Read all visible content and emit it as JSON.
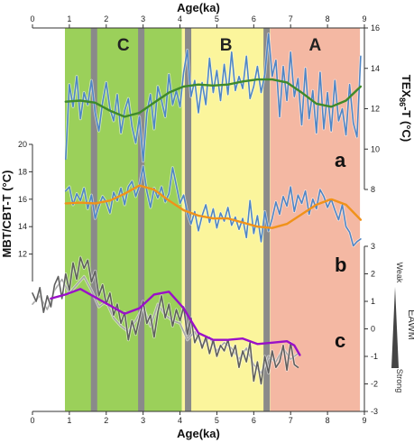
{
  "title": "",
  "axes": {
    "x_top_title": "Age(ka)",
    "x_bottom_title": "Age(ka)",
    "x_range": [
      0,
      9
    ],
    "x_ticks": [
      "0",
      "1",
      "2",
      "3",
      "4",
      "5",
      "6",
      "7",
      "8",
      "9"
    ],
    "y_left_title": "MBT/CBT-T (°C)",
    "y_left_ticks": [
      "12",
      "14",
      "16",
      "18",
      "20"
    ],
    "y_right_top_title_main": "TEX",
    "y_right_top_title_sub": "86",
    "y_right_top_title_tail": "-T (°C)",
    "y_right_top_ticks": [
      "8",
      "10",
      "12",
      "14",
      "16"
    ],
    "y_right_bottom_ticks": [
      "-3",
      "-2",
      "-1",
      "0",
      "1",
      "2",
      "3"
    ]
  },
  "zones": [
    {
      "label": "C",
      "from": 0.88,
      "to": 4.05,
      "color": "#9bd05a"
    },
    {
      "label": "B",
      "from": 4.05,
      "to": 6.45,
      "color": "#fbf59c"
    },
    {
      "label": "A",
      "from": 6.45,
      "to": 8.88,
      "color": "#f4b8a3"
    }
  ],
  "events": [
    1.67,
    2.95,
    4.22,
    6.35
  ],
  "event_color": "#8a8a8a",
  "curve_labels": [
    "a",
    "b",
    "c"
  ],
  "eawm": {
    "title": "EAWM",
    "weak": "Weak",
    "strong": "Strong"
  },
  "chart_data": {
    "type": "line",
    "x_label": "Age(ka)",
    "xlim": [
      0,
      9
    ],
    "series": [
      {
        "key": "a",
        "axis": "right_top",
        "ylim": [
          8,
          16
        ],
        "color": "#4f86c6",
        "x": [
          0.9,
          1.0,
          1.1,
          1.2,
          1.3,
          1.4,
          1.5,
          1.6,
          1.7,
          1.8,
          1.9,
          2.0,
          2.1,
          2.2,
          2.3,
          2.4,
          2.5,
          2.6,
          2.7,
          2.8,
          2.9,
          3.0,
          3.1,
          3.2,
          3.3,
          3.4,
          3.5,
          3.6,
          3.7,
          3.8,
          3.9,
          4.0,
          4.1,
          4.2,
          4.3,
          4.4,
          4.5,
          4.6,
          4.7,
          4.8,
          4.9,
          5.0,
          5.1,
          5.2,
          5.3,
          5.4,
          5.5,
          5.6,
          5.7,
          5.8,
          5.9,
          6.0,
          6.1,
          6.2,
          6.3,
          6.4,
          6.5,
          6.6,
          6.7,
          6.8,
          6.9,
          7.0,
          7.1,
          7.2,
          7.3,
          7.4,
          7.5,
          7.6,
          7.7,
          7.8,
          7.9,
          8.0,
          8.1,
          8.2,
          8.3,
          8.4,
          8.5,
          8.6,
          8.7,
          8.8,
          8.9
        ],
        "y": [
          9.5,
          13.2,
          12.1,
          13.6,
          11.5,
          12.8,
          12.2,
          13.4,
          11.8,
          10.9,
          12.3,
          13.3,
          12.0,
          11.4,
          12.7,
          10.8,
          11.9,
          12.5,
          11.1,
          10.3,
          11.6,
          9.4,
          11.8,
          12.7,
          11.0,
          13.1,
          12.4,
          11.6,
          13.7,
          12.2,
          12.9,
          12.1,
          13.8,
          14.9,
          12.6,
          13.4,
          11.8,
          13.3,
          12.2,
          14.5,
          12.8,
          13.9,
          12.4,
          14.2,
          12.7,
          14.8,
          12.9,
          13.6,
          13.0,
          14.6,
          12.5,
          13.1,
          14.1,
          12.8,
          13.7,
          15.7,
          13.6,
          14.4,
          11.6,
          14.1,
          12.4,
          14.8,
          12.6,
          13.5,
          11.2,
          14.0,
          11.5,
          12.9,
          10.8,
          13.8,
          11.0,
          12.8,
          10.9,
          13.4,
          11.4,
          12.0,
          10.7,
          13.2,
          11.3,
          10.6,
          14.6
        ]
      },
      {
        "key": "a_smooth",
        "axis": "right_top",
        "ylim": [
          8,
          16
        ],
        "color": "#3e8a2a",
        "x": [
          0.9,
          1.3,
          1.7,
          2.1,
          2.5,
          2.9,
          3.3,
          3.7,
          4.1,
          4.5,
          4.9,
          5.3,
          5.7,
          6.1,
          6.5,
          6.9,
          7.3,
          7.7,
          8.1,
          8.5,
          8.9
        ],
        "y": [
          12.35,
          12.4,
          12.3,
          11.9,
          11.6,
          11.8,
          12.3,
          12.8,
          13.1,
          13.2,
          13.15,
          13.2,
          13.35,
          13.45,
          13.45,
          13.3,
          12.8,
          12.25,
          12.1,
          12.4,
          13.1
        ]
      },
      {
        "key": "b",
        "axis": "left",
        "ylim": [
          10,
          20
        ],
        "color": "#4f86c6",
        "x": [
          0.9,
          1.0,
          1.1,
          1.2,
          1.3,
          1.4,
          1.5,
          1.6,
          1.7,
          1.8,
          1.9,
          2.0,
          2.1,
          2.2,
          2.3,
          2.4,
          2.5,
          2.6,
          2.7,
          2.8,
          2.9,
          3.0,
          3.1,
          3.2,
          3.3,
          3.4,
          3.5,
          3.6,
          3.7,
          3.8,
          3.9,
          4.0,
          4.1,
          4.2,
          4.3,
          4.4,
          4.5,
          4.6,
          4.7,
          4.8,
          4.9,
          5.0,
          5.1,
          5.2,
          5.3,
          5.4,
          5.5,
          5.6,
          5.7,
          5.8,
          5.9,
          6.0,
          6.1,
          6.2,
          6.3,
          6.4,
          6.5,
          6.6,
          6.7,
          6.8,
          6.9,
          7.0,
          7.1,
          7.2,
          7.3,
          7.4,
          7.5,
          7.6,
          7.7,
          7.8,
          7.9,
          8.0,
          8.1,
          8.2,
          8.3,
          8.4,
          8.5,
          8.6,
          8.7,
          8.8,
          8.9
        ],
        "y": [
          16.6,
          16.9,
          15.6,
          16.4,
          15.9,
          16.8,
          15.3,
          16.3,
          14.6,
          15.5,
          16.2,
          15.8,
          15.0,
          16.5,
          15.9,
          16.8,
          15.6,
          16.9,
          17.3,
          16.2,
          17.0,
          18.4,
          16.6,
          15.4,
          16.8,
          16.1,
          16.9,
          15.8,
          16.4,
          18.3,
          17.0,
          15.7,
          16.3,
          15.0,
          14.2,
          15.1,
          13.7,
          14.8,
          15.6,
          14.3,
          15.3,
          13.9,
          15.0,
          14.4,
          15.4,
          14.1,
          14.7,
          13.8,
          14.6,
          13.2,
          15.9,
          13.5,
          14.8,
          12.9,
          15.1,
          13.7,
          14.6,
          15.8,
          14.9,
          16.2,
          15.5,
          16.9,
          15.1,
          16.3,
          15.7,
          16.6,
          14.9,
          16.0,
          15.3,
          16.7,
          16.2,
          15.4,
          16.0,
          15.2,
          14.5,
          15.6,
          14.0,
          13.6,
          12.6,
          12.9,
          13.1
        ]
      },
      {
        "key": "b_smooth",
        "axis": "left",
        "ylim": [
          10,
          20
        ],
        "color": "#f0921a",
        "x": [
          0.9,
          1.3,
          1.7,
          2.1,
          2.5,
          2.9,
          3.3,
          3.7,
          4.1,
          4.5,
          4.9,
          5.3,
          5.7,
          6.1,
          6.5,
          6.9,
          7.3,
          7.7,
          8.1,
          8.5,
          8.9
        ],
        "y": [
          15.7,
          15.75,
          15.7,
          15.9,
          16.4,
          17.0,
          16.7,
          15.9,
          15.2,
          14.8,
          14.6,
          14.6,
          14.3,
          14.0,
          13.9,
          14.2,
          14.9,
          15.6,
          16.0,
          15.6,
          14.5
        ]
      },
      {
        "key": "c",
        "axis": "right_bottom",
        "ylim": [
          -3,
          3
        ],
        "color": "#5f5f5f",
        "x": [
          0.0,
          0.1,
          0.2,
          0.3,
          0.4,
          0.5,
          0.6,
          0.7,
          0.8,
          0.9,
          1.0,
          1.1,
          1.2,
          1.3,
          1.4,
          1.5,
          1.6,
          1.7,
          1.8,
          1.9,
          2.0,
          2.1,
          2.2,
          2.3,
          2.4,
          2.5,
          2.6,
          2.7,
          2.8,
          2.9,
          3.0,
          3.1,
          3.2,
          3.3,
          3.4,
          3.5,
          3.6,
          3.7,
          3.8,
          3.9,
          4.0,
          4.1,
          4.2,
          4.3,
          4.4,
          4.5,
          4.6,
          4.7,
          4.8,
          4.9,
          5.0,
          5.1,
          5.2,
          5.3,
          5.4,
          5.5,
          5.6,
          5.7,
          5.8,
          5.9,
          6.0,
          6.1,
          6.2,
          6.3,
          6.4,
          6.5,
          6.6,
          6.7,
          6.8,
          6.9,
          7.0,
          7.1,
          7.2
        ],
        "y": [
          1.3,
          1.0,
          1.5,
          0.6,
          1.2,
          0.8,
          1.6,
          1.9,
          1.1,
          2.0,
          1.4,
          2.4,
          1.8,
          2.6,
          2.2,
          2.5,
          1.7,
          2.1,
          1.2,
          1.6,
          0.9,
          1.3,
          0.5,
          0.9,
          0.2,
          0.6,
          -0.4,
          0.3,
          -0.2,
          0.4,
          1.0,
          0.2,
          0.5,
          -0.3,
          0.6,
          1.2,
          0.4,
          0.9,
          0.1,
          0.7,
          0.3,
          0.8,
          -0.2,
          0.4,
          -0.5,
          -0.2,
          -0.7,
          -0.3,
          -0.9,
          -0.4,
          -1.0,
          -0.6,
          -0.8,
          -0.4,
          -1.0,
          -0.6,
          -1.4,
          -0.8,
          -1.2,
          -0.5,
          -1.9,
          -1.2,
          -2.0,
          -1.0,
          -1.6,
          -0.8,
          -1.4,
          -1.2,
          -0.6,
          -1.5,
          -0.5,
          -1.3,
          -1.4
        ]
      },
      {
        "key": "c_light",
        "axis": "right_bottom",
        "ylim": [
          -3,
          3
        ],
        "color": "#a7a7a7",
        "x": [
          0.0,
          0.2,
          0.4,
          0.6,
          0.8,
          1.0,
          1.2,
          1.4,
          1.6,
          1.8,
          2.0,
          2.2,
          2.4,
          2.6,
          2.8,
          3.0,
          3.2,
          3.4,
          3.6,
          3.8,
          4.0,
          4.2,
          4.4,
          4.6,
          4.8,
          5.0,
          5.2,
          5.4,
          5.6,
          5.8,
          6.0,
          6.2,
          6.4,
          6.6,
          6.8,
          7.0,
          7.2
        ],
        "y": [
          0.9,
          1.2,
          0.7,
          1.4,
          1.8,
          1.3,
          1.6,
          1.9,
          1.4,
          0.8,
          1.0,
          0.4,
          0.1,
          -0.1,
          0.3,
          0.8,
          0.1,
          0.9,
          0.5,
          0.3,
          0.2,
          -0.4,
          -0.1,
          -0.6,
          -0.3,
          -0.8,
          -0.5,
          -0.7,
          -1.1,
          -0.7,
          -1.3,
          -1.6,
          -1.0,
          -1.2,
          -0.7,
          -1.1,
          -0.9
        ]
      },
      {
        "key": "c_smooth",
        "axis": "right_bottom",
        "ylim": [
          -3,
          3
        ],
        "color": "#9a10c8",
        "x": [
          0.5,
          0.9,
          1.3,
          1.7,
          2.1,
          2.5,
          2.9,
          3.3,
          3.7,
          4.1,
          4.5,
          4.9,
          5.3,
          5.7,
          6.1,
          6.5,
          6.9,
          7.1,
          7.25
        ],
        "y": [
          1.1,
          1.25,
          1.45,
          1.15,
          0.85,
          0.55,
          0.75,
          1.25,
          1.35,
          0.75,
          -0.15,
          -0.4,
          -0.4,
          -0.35,
          -0.55,
          -0.5,
          -0.45,
          -0.6,
          -0.95
        ]
      }
    ]
  }
}
